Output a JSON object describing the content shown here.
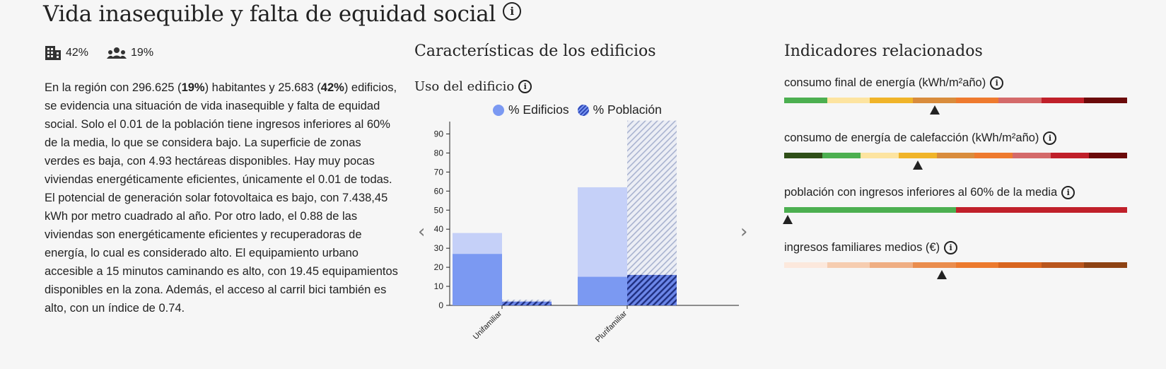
{
  "title": "Vida inasequible y falta de equidad social",
  "stats": {
    "buildings_pct": "42%",
    "population_pct": "19%"
  },
  "description": {
    "p1": "En la región con 296.625 (",
    "b1": "19%",
    "p2": ") habitantes y 25.683 (",
    "b2": "42%",
    "p3": ") edificios, se evidencia una situación de vida inasequible y falta de equidad social. Solo el 0.01 de la población tiene ingresos inferiores al 60% de la media, lo que se considera bajo. La superficie de zonas verdes es baja, con 4.93 hectáreas disponibles. Hay muy pocas viviendas energéticamente eficientes, únicamente el 0.01 de todas. El potencial de generación solar fotovoltaica es bajo, con 7.438,45 kWh por metro cuadrado al año. Por otro lado, el 0.88 de las viviendas son energéticamente eficientes y recuperadoras de energía, lo cual es considerado alto. El equipamiento urbano accesible a 15 minutos caminando es alto, con 19.45 equipamientos disponibles en la zona. Además, el acceso al carril bici también es alto, con un índice de 0.74."
  },
  "buildings": {
    "heading": "Características de los edificios",
    "subheading": "Uso del edificio",
    "legend": {
      "edificios": "% Edificios",
      "poblacion": "% Población"
    },
    "prev_label": "‹",
    "next_label": "›"
  },
  "chart_data": {
    "type": "bar",
    "categories": [
      "Unifamiliar",
      "Plurifamiliar"
    ],
    "series": [
      {
        "name": "% Edificios",
        "total": [
          38,
          62
        ],
        "highlight": [
          27,
          15
        ]
      },
      {
        "name": "% Población",
        "total": [
          3,
          97
        ],
        "highlight": [
          2,
          16
        ]
      }
    ],
    "ylim": [
      0,
      95
    ],
    "yticks": [
      0,
      10,
      20,
      30,
      40,
      50,
      60,
      70,
      80,
      90
    ],
    "colors": {
      "edificios_light": "#c5d0f8",
      "edificios_dark": "#7b99f2",
      "poblacion_dark": "#3352c9"
    }
  },
  "indicators": {
    "heading": "Indicadores relacionados",
    "items": [
      {
        "label": "consumo final de energía (kWh/m²año)",
        "colors": [
          "#4caf50",
          "#fde4a0",
          "#f0b429",
          "#d98c3c",
          "#ee7a2f",
          "#d46a6a",
          "#c0202a",
          "#6b0a0a"
        ],
        "marker": 0.44
      },
      {
        "label": "consumo de energía de calefacción (kWh/m²año)",
        "colors": [
          "#2f4f18",
          "#4caf50",
          "#fde4a0",
          "#f0b429",
          "#d98c3c",
          "#ee7a2f",
          "#d46a6a",
          "#c0202a",
          "#6b0a0a"
        ],
        "marker": 0.39
      },
      {
        "label": "población con ingresos inferiores al 60% de la media",
        "colors": [
          "#4caf50",
          "#c0202a"
        ],
        "marker": 0.01
      },
      {
        "label": "ingresos familiares medios (€)",
        "colors": [
          "#fce8dc",
          "#f6cdb0",
          "#efae83",
          "#ea8d4d",
          "#ec7a2e",
          "#d8651f",
          "#b9561d",
          "#8e4314"
        ],
        "marker": 0.46
      }
    ]
  }
}
